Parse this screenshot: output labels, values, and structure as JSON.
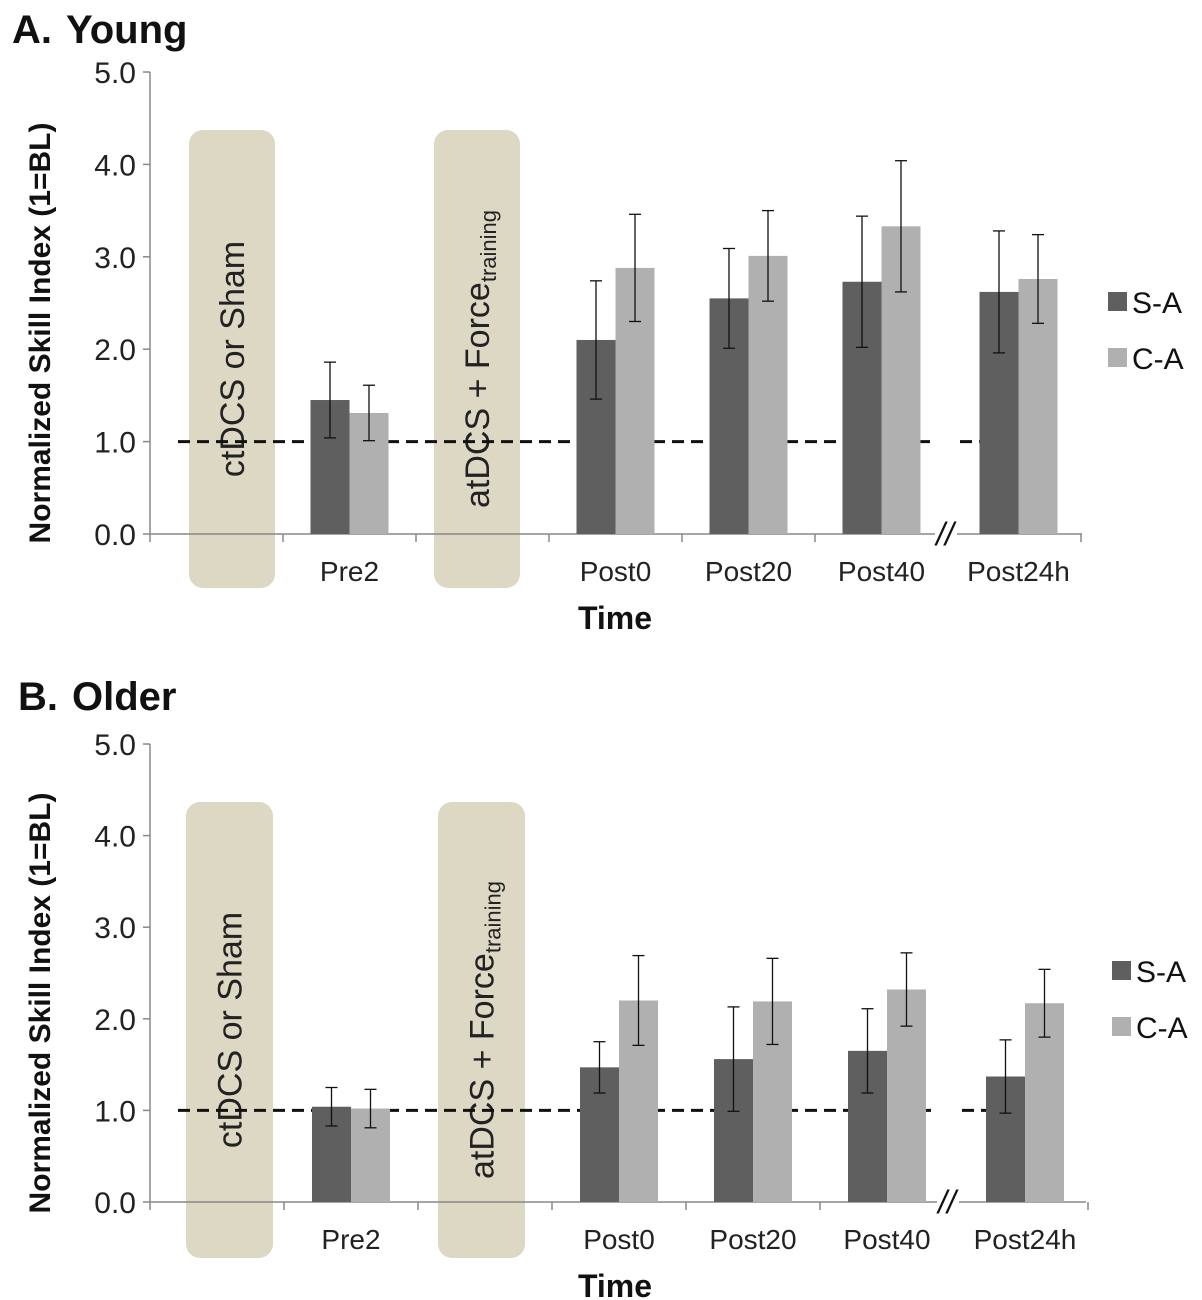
{
  "chart_data": [
    {
      "type": "bar",
      "panel_label": "A.",
      "title": "Young",
      "ylabel": "Normalized Skill Index (1=BL)",
      "xlabel": "Time",
      "ylim": [
        0,
        5
      ],
      "yticks": [
        "0.0",
        "1.0",
        "2.0",
        "3.0",
        "4.0",
        "5.0"
      ],
      "grid": false,
      "legend_position": "right",
      "baseline": 1.0,
      "axis_break_symbol": "//",
      "categories": [
        "Pre2",
        "Post0",
        "Post20",
        "Post40",
        "Post24h"
      ],
      "series": [
        {
          "name": "S-A",
          "color": "#5f5f5f",
          "values": [
            1.45,
            2.1,
            2.55,
            2.73,
            2.62
          ],
          "errors": [
            0.41,
            0.64,
            0.54,
            0.71,
            0.66
          ]
        },
        {
          "name": "C-A",
          "color": "#b0b0b0",
          "values": [
            1.31,
            2.88,
            3.01,
            3.33,
            2.76
          ],
          "errors": [
            0.3,
            0.58,
            0.49,
            0.71,
            0.48
          ]
        }
      ],
      "intervention_boxes": [
        {
          "text": "ctDCS or Sham",
          "sub": ""
        },
        {
          "text": "atDCS + Force",
          "sub": "training"
        }
      ]
    },
    {
      "type": "bar",
      "panel_label": "B.",
      "title": "Older",
      "ylabel": "Normalized Skill Index (1=BL)",
      "xlabel": "Time",
      "ylim": [
        0,
        5
      ],
      "yticks": [
        "0.0",
        "1.0",
        "2.0",
        "3.0",
        "4.0",
        "5.0"
      ],
      "grid": false,
      "legend_position": "right",
      "baseline": 1.0,
      "axis_break_symbol": "//",
      "categories": [
        "Pre2",
        "Post0",
        "Post20",
        "Post40",
        "Post24h"
      ],
      "series": [
        {
          "name": "S-A",
          "color": "#5f5f5f",
          "values": [
            1.04,
            1.47,
            1.56,
            1.65,
            1.37
          ],
          "errors": [
            0.21,
            0.28,
            0.57,
            0.46,
            0.4
          ]
        },
        {
          "name": "C-A",
          "color": "#b0b0b0",
          "values": [
            1.02,
            2.2,
            2.19,
            2.32,
            2.17
          ],
          "errors": [
            0.21,
            0.49,
            0.47,
            0.4,
            0.37
          ]
        }
      ],
      "intervention_boxes": [
        {
          "text": "ctDCS or Sham",
          "sub": ""
        },
        {
          "text": "atDCS + Force",
          "sub": "training"
        }
      ]
    }
  ]
}
